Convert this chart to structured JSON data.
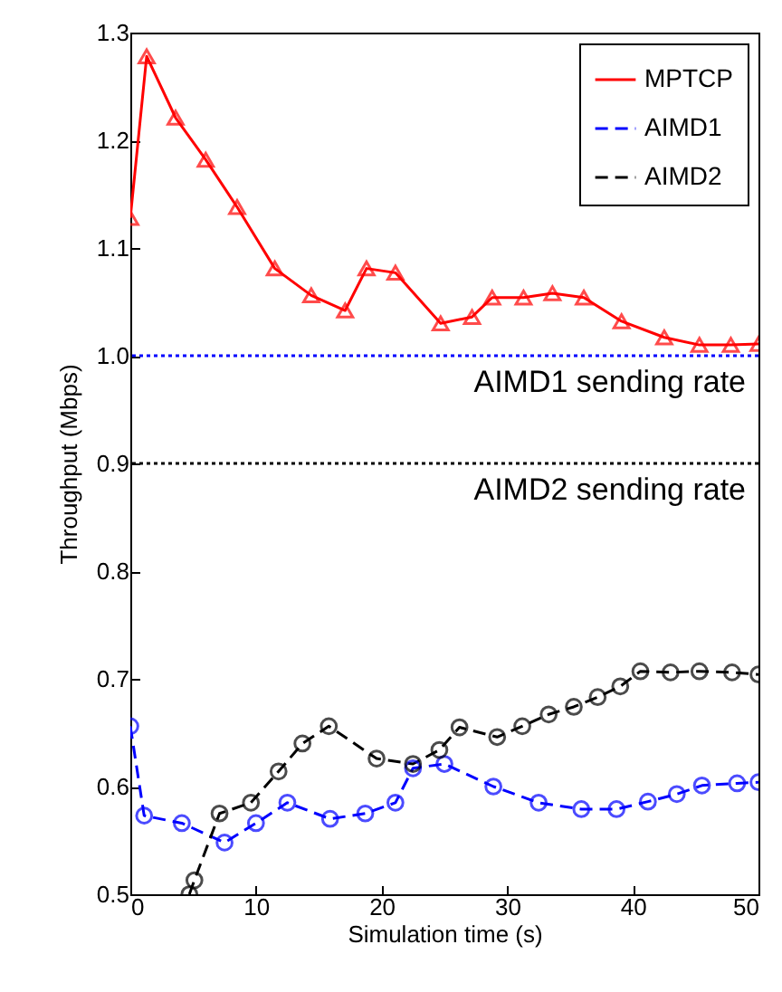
{
  "chart_data": {
    "type": "line",
    "xlabel": "Simulation time (s)",
    "ylabel": "Throughput (Mbps)",
    "xlim": [
      0,
      50
    ],
    "xticks": [
      0,
      10,
      20,
      30,
      40,
      50
    ],
    "ylim": [
      0.5,
      1.3
    ],
    "yticks": [
      0.5,
      0.6,
      0.7,
      0.8,
      0.9,
      {
        "value": 1.0,
        "label": "1.0"
      },
      1.1,
      1.2,
      1.3
    ],
    "legend": "top right",
    "grid": false,
    "series": [
      {
        "name": "MPTCP",
        "color": "#ff0000",
        "marker": "triangle",
        "line_style": "solid",
        "x": [
          0,
          1.3,
          3.6,
          6.0,
          8.5,
          11.5,
          14.4,
          17.1,
          18.8,
          21.1,
          24.7,
          27.2,
          28.8,
          31.3,
          33.6,
          36.1,
          39.1,
          42.5,
          45.3,
          47.8,
          50
        ],
        "values": [
          1.128,
          1.278,
          1.221,
          1.182,
          1.138,
          1.081,
          1.056,
          1.042,
          1.081,
          1.077,
          1.03,
          1.036,
          1.054,
          1.054,
          1.058,
          1.054,
          1.032,
          1.017,
          1.01,
          1.01,
          1.011
        ]
      },
      {
        "name": "AIMD1",
        "color": "#0000ff",
        "marker": "circle",
        "line_style": "dashed",
        "x": [
          0,
          1.1,
          4.1,
          7.5,
          10.0,
          12.5,
          15.9,
          18.7,
          21.1,
          22.5,
          25.0,
          28.9,
          32.5,
          35.9,
          38.7,
          41.2,
          43.5,
          45.5,
          48.3,
          50
        ],
        "values": [
          0.656,
          0.573,
          0.566,
          0.548,
          0.566,
          0.585,
          0.57,
          0.575,
          0.585,
          0.617,
          0.621,
          0.6,
          0.585,
          0.579,
          0.579,
          0.586,
          0.593,
          0.601,
          0.603,
          0.604
        ]
      },
      {
        "name": "AIMD2",
        "color": "#000000",
        "marker": "circle",
        "line_style": "dashed",
        "x": [
          4.7,
          5.1,
          7.1,
          9.6,
          11.8,
          13.7,
          15.8,
          19.6,
          22.5,
          24.6,
          26.2,
          29.2,
          31.2,
          33.3,
          35.3,
          37.2,
          39.0,
          40.6,
          43.0,
          45.3,
          47.9,
          50
        ],
        "values": [
          0.5,
          0.513,
          0.575,
          0.585,
          0.614,
          0.64,
          0.656,
          0.626,
          0.621,
          0.634,
          0.655,
          0.646,
          0.656,
          0.667,
          0.674,
          0.683,
          0.693,
          0.707,
          0.706,
          0.707,
          0.706,
          0.704
        ]
      }
    ],
    "ref_lines": [
      {
        "axis": "y",
        "value": 1.0,
        "label": "AIMD1 sending rate",
        "color": "#0000ff",
        "line_style": "dotted"
      },
      {
        "axis": "y",
        "value": 0.9,
        "label": "AIMD2 sending rate",
        "color": "#000000",
        "line_style": "dotted"
      }
    ]
  }
}
